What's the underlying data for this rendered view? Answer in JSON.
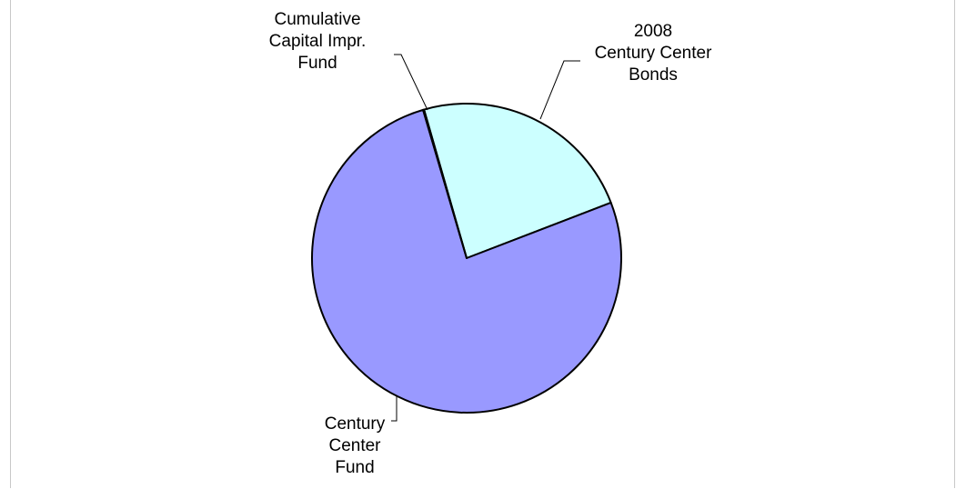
{
  "chart_data": {
    "type": "pie",
    "title": "",
    "start_angle_deg": -106,
    "slices": [
      {
        "name": "2008 Century Center Bonds",
        "label_lines": [
          "2008",
          "Century Center",
          "Bonds"
        ],
        "value": 23.6,
        "color": "#ccffff"
      },
      {
        "name": "Century Center Fund",
        "label_lines": [
          "Century",
          "Center",
          "Fund"
        ],
        "value": 76.3,
        "color": "#9999ff"
      },
      {
        "name": "Cumulative Capital Impr. Fund",
        "label_lines": [
          "Cumulative",
          "Capital Impr.",
          "Fund"
        ],
        "value": 0.1,
        "color": "#993366"
      }
    ],
    "legend": "none",
    "data_labels": "category-name-with-leader-lines"
  }
}
